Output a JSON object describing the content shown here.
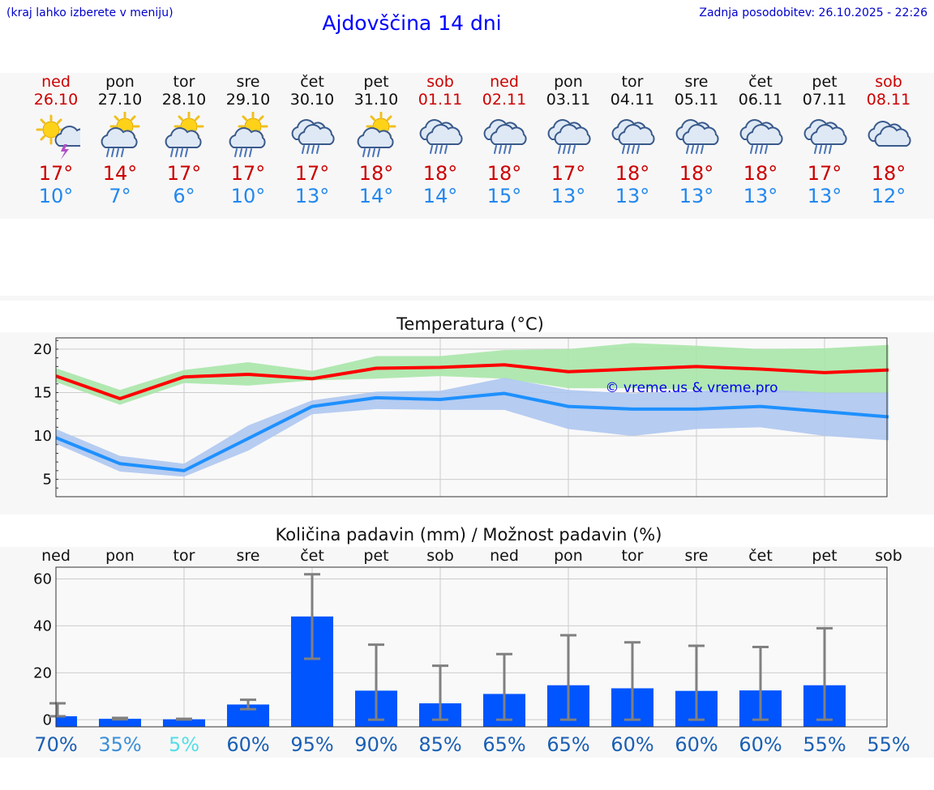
{
  "header": {
    "hint": "(kraj lahko izberete v meniju)",
    "title": "Ajdovščina 14 dni",
    "updated": "Zadnja posodobitev: 26.10.2025 - 22:26"
  },
  "days": [
    {
      "name": "ned",
      "date": "26.10",
      "weekend": true,
      "icon": "sun-cloud-thunder-icon",
      "tmax": "17°",
      "tmin": "10°"
    },
    {
      "name": "pon",
      "date": "27.10",
      "weekend": false,
      "icon": "sun-cloud-rain-icon",
      "tmax": "14°",
      "tmin": "7°"
    },
    {
      "name": "tor",
      "date": "28.10",
      "weekend": false,
      "icon": "sun-cloud-rain-icon",
      "tmax": "17°",
      "tmin": "6°"
    },
    {
      "name": "sre",
      "date": "29.10",
      "weekend": false,
      "icon": "sun-cloud-rain-icon",
      "tmax": "17°",
      "tmin": "10°"
    },
    {
      "name": "čet",
      "date": "30.10",
      "weekend": false,
      "icon": "cloud-rain-icon",
      "tmax": "17°",
      "tmin": "13°"
    },
    {
      "name": "pet",
      "date": "31.10",
      "weekend": false,
      "icon": "sun-cloud-rain-icon",
      "tmax": "18°",
      "tmin": "14°"
    },
    {
      "name": "sob",
      "date": "01.11",
      "weekend": true,
      "icon": "cloud-rain-icon",
      "tmax": "18°",
      "tmin": "14°"
    },
    {
      "name": "ned",
      "date": "02.11",
      "weekend": true,
      "icon": "cloud-rain-icon",
      "tmax": "18°",
      "tmin": "15°"
    },
    {
      "name": "pon",
      "date": "03.11",
      "weekend": false,
      "icon": "cloud-rain-icon",
      "tmax": "17°",
      "tmin": "13°"
    },
    {
      "name": "tor",
      "date": "04.11",
      "weekend": false,
      "icon": "cloud-rain-icon",
      "tmax": "18°",
      "tmin": "13°"
    },
    {
      "name": "sre",
      "date": "05.11",
      "weekend": false,
      "icon": "cloud-rain-icon",
      "tmax": "18°",
      "tmin": "13°"
    },
    {
      "name": "čet",
      "date": "06.11",
      "weekend": false,
      "icon": "cloud-rain-icon",
      "tmax": "18°",
      "tmin": "13°"
    },
    {
      "name": "pet",
      "date": "07.11",
      "weekend": false,
      "icon": "cloud-rain-icon",
      "tmax": "17°",
      "tmin": "13°"
    },
    {
      "name": "sob",
      "date": "08.11",
      "weekend": true,
      "icon": "cloud-icon",
      "tmax": "18°",
      "tmin": "12°"
    }
  ],
  "colors": {
    "max_line": "#ff0000",
    "max_band": "#a8e6a8",
    "min_line": "#1e90ff",
    "min_band": "#aec6f0",
    "bar": "#0055ff",
    "error_bar": "#808080",
    "weekend": "#cc0000",
    "grid": "#cccccc"
  },
  "chart_data": [
    {
      "type": "line",
      "title": "Temperatura (°C)",
      "watermark": "© vreme.us & vreme.pro",
      "ylim": [
        3,
        21.3
      ],
      "yticks": [
        5,
        10,
        15,
        20
      ],
      "grid": true,
      "series": [
        {
          "values": [
            16.9,
            14.3,
            16.8,
            17.1,
            16.6,
            17.8,
            17.9,
            18.2,
            17.4,
            17.7,
            18.0,
            17.7,
            17.3,
            17.6
          ],
          "band_low": [
            16.2,
            13.6,
            16.1,
            15.8,
            16.4,
            16.6,
            16.9,
            16.6,
            15.5,
            15.5,
            15.3,
            15.1,
            14.9,
            14.9
          ],
          "band_high": [
            17.8,
            15.3,
            17.6,
            18.5,
            17.5,
            19.2,
            19.2,
            19.9,
            20.0,
            20.7,
            20.4,
            20.0,
            20.1,
            20.5
          ]
        },
        {
          "values": [
            9.8,
            6.8,
            6.0,
            9.7,
            13.4,
            14.4,
            14.2,
            14.9,
            13.4,
            13.1,
            13.1,
            13.4,
            12.8,
            12.2
          ],
          "band_low": [
            9.1,
            5.9,
            5.3,
            8.3,
            12.5,
            13.1,
            13.0,
            13.0,
            10.8,
            10.0,
            10.8,
            11.0,
            10.0,
            9.5
          ],
          "band_high": [
            10.8,
            7.7,
            6.8,
            11.2,
            14.1,
            15.1,
            15.2,
            16.7,
            15.3,
            14.9,
            15.2,
            15.4,
            15.0,
            15.0
          ]
        }
      ]
    },
    {
      "type": "bar",
      "title": "Količina padavin (mm) / Možnost padavin (%)",
      "categories": [
        "ned",
        "pon",
        "tor",
        "sre",
        "čet",
        "pet",
        "sob",
        "ned",
        "pon",
        "tor",
        "sre",
        "čet",
        "pet",
        "sob"
      ],
      "values": [
        1.5,
        0.4,
        0.2,
        6.5,
        44,
        12.4,
        7.0,
        11.0,
        14.7,
        13.4,
        12.3,
        12.5,
        14.7,
        0
      ],
      "err_low": [
        1.5,
        0.2,
        0.1,
        4.5,
        26,
        0,
        0,
        0,
        0,
        0,
        0,
        0,
        0,
        0
      ],
      "err_high": [
        7,
        0.8,
        0.4,
        8.5,
        62,
        32,
        23,
        28,
        36,
        33,
        31.5,
        31,
        39,
        0
      ],
      "ylim": [
        -3,
        65
      ],
      "yticks": [
        0,
        20,
        40,
        60
      ],
      "grid": true,
      "probabilities": [
        "70%",
        "35%",
        "5%",
        "60%",
        "95%",
        "90%",
        "85%",
        "65%",
        "65%",
        "60%",
        "60%",
        "60%",
        "55%",
        "55%"
      ],
      "probability_colors": [
        "#1a5fb4",
        "#3a8fd8",
        "#55dde6",
        "#1a5fb4",
        "#1a5fb4",
        "#1a5fb4",
        "#1a5fb4",
        "#1a5fb4",
        "#1a5fb4",
        "#1a5fb4",
        "#1a5fb4",
        "#1a5fb4",
        "#1a5fb4",
        "#1a5fb4"
      ]
    }
  ]
}
